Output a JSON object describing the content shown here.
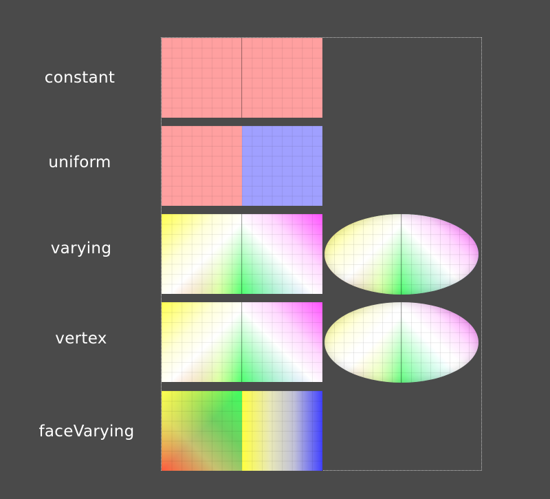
{
  "rows": [
    {
      "label": "constant"
    },
    {
      "label": "uniform"
    },
    {
      "label": "varying"
    },
    {
      "label": "vertex"
    },
    {
      "label": "faceVarying"
    }
  ],
  "colors": {
    "background": "#4a4a4a",
    "constant": "#ffa0a0",
    "uniform_left": "#ffa0a0",
    "uniform_right": "#a0a0ff",
    "bounding_box": "#c8c8c8"
  }
}
